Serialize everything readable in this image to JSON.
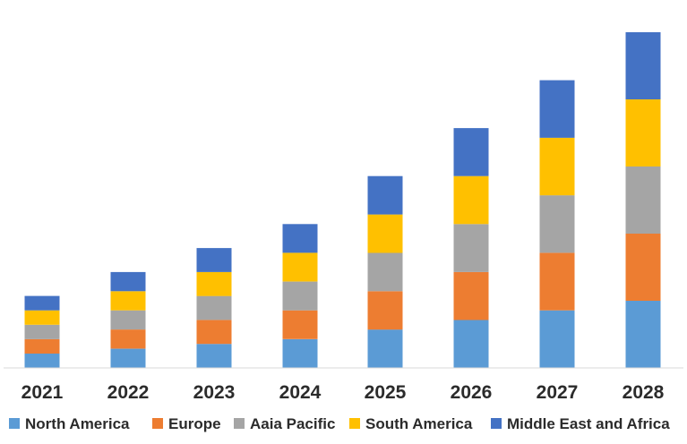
{
  "chart_data": {
    "type": "bar",
    "stacked": true,
    "categories": [
      "2021",
      "2022",
      "2023",
      "2024",
      "2025",
      "2026",
      "2027",
      "2028"
    ],
    "series": [
      {
        "name": "North America",
        "color": "#5B9BD5",
        "values": [
          3,
          4,
          5,
          6,
          8,
          10,
          12,
          14
        ]
      },
      {
        "name": "Europe",
        "color": "#ED7D31",
        "values": [
          3,
          4,
          5,
          6,
          8,
          10,
          12,
          14
        ]
      },
      {
        "name": "Aaia Pacific",
        "color": "#A5A5A5",
        "values": [
          3,
          4,
          5,
          6,
          8,
          10,
          12,
          14
        ]
      },
      {
        "name": "South America",
        "color": "#FFC000",
        "values": [
          3,
          4,
          5,
          6,
          8,
          10,
          12,
          14
        ]
      },
      {
        "name": "Middle East and Africa",
        "color": "#4472C4",
        "values": [
          3,
          4,
          5,
          6,
          8,
          10,
          12,
          14
        ]
      }
    ],
    "ylim": [
      0,
      70
    ],
    "grid": false,
    "legend_position": "bottom"
  }
}
